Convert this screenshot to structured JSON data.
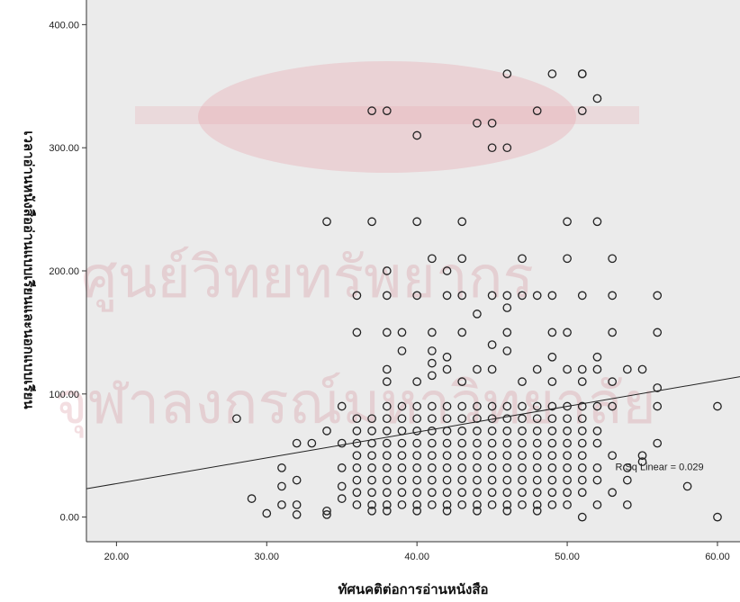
{
  "chart_data": {
    "type": "scatter",
    "title": "",
    "xlabel": "ทัศนคติต่อการอ่านหนังสือ",
    "ylabel": "เวลาอ่านหนังสืออ่านแบบเรียนและนอกแบบเรียน",
    "xlim": [
      18,
      61.5
    ],
    "ylim": [
      -20,
      420
    ],
    "x_ticks": [
      "20.00",
      "30.00",
      "40.00",
      "50.00",
      "60.00"
    ],
    "x_tick_values": [
      20,
      30,
      40,
      50,
      60
    ],
    "y_ticks": [
      "0.00",
      "100.00",
      "200.00",
      "300.00",
      "400.00"
    ],
    "y_tick_values": [
      0,
      100,
      200,
      300,
      400
    ],
    "grid": false,
    "background": "#ebebeb",
    "marker_color": "#222222",
    "fit_line": {
      "label": "R Sq Linear = 0.029",
      "points": [
        [
          18,
          23
        ],
        [
          61.5,
          114
        ]
      ]
    },
    "watermark_lines": [
      "ศูนย์วิทยทรัพยากร",
      "จุฬาลงกรณ์มหาวิทยาลัย"
    ],
    "points": [
      [
        46,
        360
      ],
      [
        49,
        360
      ],
      [
        51,
        360
      ],
      [
        51,
        360
      ],
      [
        52,
        340
      ],
      [
        37,
        330
      ],
      [
        38,
        330
      ],
      [
        48,
        330
      ],
      [
        51,
        330
      ],
      [
        44,
        320
      ],
      [
        45,
        320
      ],
      [
        40,
        310
      ],
      [
        45,
        300
      ],
      [
        46,
        300
      ],
      [
        34,
        240
      ],
      [
        37,
        240
      ],
      [
        40,
        240
      ],
      [
        43,
        240
      ],
      [
        50,
        240
      ],
      [
        52,
        240
      ],
      [
        41,
        210
      ],
      [
        43,
        210
      ],
      [
        47,
        210
      ],
      [
        50,
        210
      ],
      [
        53,
        210
      ],
      [
        38,
        200
      ],
      [
        42,
        200
      ],
      [
        36,
        180
      ],
      [
        38,
        180
      ],
      [
        40,
        180
      ],
      [
        42,
        180
      ],
      [
        43,
        180
      ],
      [
        45,
        180
      ],
      [
        46,
        180
      ],
      [
        47,
        180
      ],
      [
        48,
        180
      ],
      [
        49,
        180
      ],
      [
        51,
        180
      ],
      [
        53,
        180
      ],
      [
        56,
        180
      ],
      [
        44,
        165
      ],
      [
        46,
        170
      ],
      [
        36,
        150
      ],
      [
        38,
        150
      ],
      [
        39,
        150
      ],
      [
        41,
        150
      ],
      [
        43,
        150
      ],
      [
        46,
        150
      ],
      [
        49,
        150
      ],
      [
        50,
        150
      ],
      [
        53,
        150
      ],
      [
        56,
        150
      ],
      [
        39,
        135
      ],
      [
        41,
        135
      ],
      [
        42,
        130
      ],
      [
        45,
        140
      ],
      [
        46,
        135
      ],
      [
        49,
        130
      ],
      [
        52,
        130
      ],
      [
        38,
        120
      ],
      [
        41,
        125
      ],
      [
        42,
        120
      ],
      [
        44,
        120
      ],
      [
        45,
        120
      ],
      [
        48,
        120
      ],
      [
        50,
        120
      ],
      [
        51,
        120
      ],
      [
        52,
        120
      ],
      [
        54,
        120
      ],
      [
        55,
        120
      ],
      [
        56,
        105
      ],
      [
        38,
        110
      ],
      [
        40,
        110
      ],
      [
        41,
        115
      ],
      [
        43,
        110
      ],
      [
        47,
        110
      ],
      [
        49,
        110
      ],
      [
        51,
        110
      ],
      [
        53,
        110
      ],
      [
        28,
        80
      ],
      [
        33,
        60
      ],
      [
        34,
        70
      ],
      [
        35,
        90
      ],
      [
        38,
        90
      ],
      [
        39,
        90
      ],
      [
        40,
        90
      ],
      [
        41,
        90
      ],
      [
        42,
        90
      ],
      [
        43,
        90
      ],
      [
        44,
        90
      ],
      [
        45,
        90
      ],
      [
        46,
        90
      ],
      [
        47,
        90
      ],
      [
        48,
        90
      ],
      [
        49,
        90
      ],
      [
        50,
        90
      ],
      [
        51,
        90
      ],
      [
        52,
        90
      ],
      [
        53,
        90
      ],
      [
        56,
        90
      ],
      [
        60,
        90
      ],
      [
        36,
        80
      ],
      [
        37,
        80
      ],
      [
        38,
        80
      ],
      [
        39,
        80
      ],
      [
        40,
        80
      ],
      [
        41,
        80
      ],
      [
        42,
        80
      ],
      [
        43,
        80
      ],
      [
        44,
        80
      ],
      [
        45,
        80
      ],
      [
        46,
        80
      ],
      [
        47,
        80
      ],
      [
        48,
        80
      ],
      [
        49,
        80
      ],
      [
        50,
        80
      ],
      [
        51,
        80
      ],
      [
        36,
        70
      ],
      [
        37,
        70
      ],
      [
        38,
        70
      ],
      [
        39,
        70
      ],
      [
        40,
        70
      ],
      [
        41,
        70
      ],
      [
        42,
        70
      ],
      [
        43,
        70
      ],
      [
        44,
        70
      ],
      [
        45,
        70
      ],
      [
        46,
        70
      ],
      [
        47,
        70
      ],
      [
        48,
        70
      ],
      [
        49,
        70
      ],
      [
        50,
        70
      ],
      [
        51,
        70
      ],
      [
        52,
        70
      ],
      [
        32,
        60
      ],
      [
        35,
        60
      ],
      [
        36,
        60
      ],
      [
        37,
        60
      ],
      [
        38,
        60
      ],
      [
        39,
        60
      ],
      [
        40,
        60
      ],
      [
        41,
        60
      ],
      [
        42,
        60
      ],
      [
        43,
        60
      ],
      [
        44,
        60
      ],
      [
        45,
        60
      ],
      [
        46,
        60
      ],
      [
        47,
        60
      ],
      [
        48,
        60
      ],
      [
        49,
        60
      ],
      [
        50,
        60
      ],
      [
        51,
        60
      ],
      [
        52,
        60
      ],
      [
        56,
        60
      ],
      [
        36,
        50
      ],
      [
        37,
        50
      ],
      [
        38,
        50
      ],
      [
        39,
        50
      ],
      [
        40,
        50
      ],
      [
        41,
        50
      ],
      [
        42,
        50
      ],
      [
        43,
        50
      ],
      [
        44,
        50
      ],
      [
        45,
        50
      ],
      [
        46,
        50
      ],
      [
        47,
        50
      ],
      [
        48,
        50
      ],
      [
        49,
        50
      ],
      [
        50,
        50
      ],
      [
        51,
        50
      ],
      [
        53,
        50
      ],
      [
        55,
        50
      ],
      [
        31,
        40
      ],
      [
        35,
        40
      ],
      [
        36,
        40
      ],
      [
        37,
        40
      ],
      [
        38,
        40
      ],
      [
        39,
        40
      ],
      [
        40,
        40
      ],
      [
        41,
        40
      ],
      [
        42,
        40
      ],
      [
        43,
        40
      ],
      [
        44,
        40
      ],
      [
        45,
        40
      ],
      [
        46,
        40
      ],
      [
        47,
        40
      ],
      [
        48,
        40
      ],
      [
        49,
        40
      ],
      [
        50,
        40
      ],
      [
        51,
        40
      ],
      [
        52,
        40
      ],
      [
        54,
        40
      ],
      [
        55,
        45
      ],
      [
        32,
        30
      ],
      [
        36,
        30
      ],
      [
        37,
        30
      ],
      [
        38,
        30
      ],
      [
        39,
        30
      ],
      [
        40,
        30
      ],
      [
        41,
        30
      ],
      [
        42,
        30
      ],
      [
        43,
        30
      ],
      [
        44,
        30
      ],
      [
        45,
        30
      ],
      [
        46,
        30
      ],
      [
        47,
        30
      ],
      [
        48,
        30
      ],
      [
        49,
        30
      ],
      [
        50,
        30
      ],
      [
        51,
        30
      ],
      [
        52,
        30
      ],
      [
        54,
        30
      ],
      [
        31,
        25
      ],
      [
        35,
        25
      ],
      [
        36,
        20
      ],
      [
        37,
        20
      ],
      [
        38,
        20
      ],
      [
        39,
        20
      ],
      [
        40,
        20
      ],
      [
        41,
        20
      ],
      [
        42,
        20
      ],
      [
        43,
        20
      ],
      [
        44,
        20
      ],
      [
        45,
        20
      ],
      [
        46,
        20
      ],
      [
        47,
        20
      ],
      [
        48,
        20
      ],
      [
        49,
        20
      ],
      [
        50,
        20
      ],
      [
        51,
        20
      ],
      [
        53,
        20
      ],
      [
        58,
        25
      ],
      [
        29,
        15
      ],
      [
        31,
        10
      ],
      [
        32,
        10
      ],
      [
        34,
        5
      ],
      [
        35,
        15
      ],
      [
        36,
        10
      ],
      [
        37,
        10
      ],
      [
        38,
        10
      ],
      [
        39,
        10
      ],
      [
        40,
        10
      ],
      [
        41,
        10
      ],
      [
        42,
        10
      ],
      [
        43,
        10
      ],
      [
        44,
        10
      ],
      [
        45,
        10
      ],
      [
        46,
        10
      ],
      [
        47,
        10
      ],
      [
        48,
        10
      ],
      [
        49,
        10
      ],
      [
        50,
        10
      ],
      [
        52,
        10
      ],
      [
        54,
        10
      ],
      [
        30,
        3
      ],
      [
        32,
        2
      ],
      [
        34,
        2
      ],
      [
        37,
        5
      ],
      [
        38,
        5
      ],
      [
        40,
        5
      ],
      [
        42,
        5
      ],
      [
        44,
        5
      ],
      [
        46,
        5
      ],
      [
        48,
        5
      ],
      [
        51,
        0
      ],
      [
        60,
        0
      ]
    ]
  }
}
